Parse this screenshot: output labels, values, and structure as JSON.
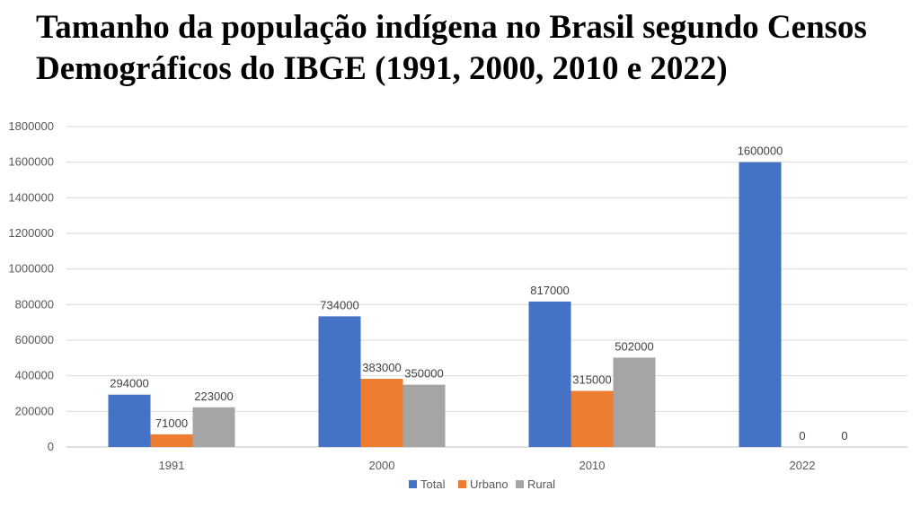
{
  "page": {
    "title_line1": "Tamanho da população indígena no Brasil segundo Censos",
    "title_line2": "Demográficos do IBGE (1991, 2000, 2010 e 2022)"
  },
  "chart_data": {
    "type": "bar",
    "categories": [
      "1991",
      "2000",
      "2010",
      "2022"
    ],
    "series": [
      {
        "name": "Total",
        "color": "#4472C4",
        "values": [
          294000,
          734000,
          817000,
          1600000
        ]
      },
      {
        "name": "Urbano",
        "color": "#ED7D31",
        "values": [
          71000,
          383000,
          315000,
          0
        ]
      },
      {
        "name": "Rural",
        "color": "#A5A5A5",
        "values": [
          223000,
          350000,
          502000,
          0
        ]
      }
    ],
    "ylim": [
      0,
      1800000
    ],
    "yticks": [
      0,
      200000,
      400000,
      600000,
      800000,
      1000000,
      1200000,
      1400000,
      1600000,
      1800000
    ],
    "grid": true,
    "legend_position": "bottom",
    "data_labels": true
  }
}
